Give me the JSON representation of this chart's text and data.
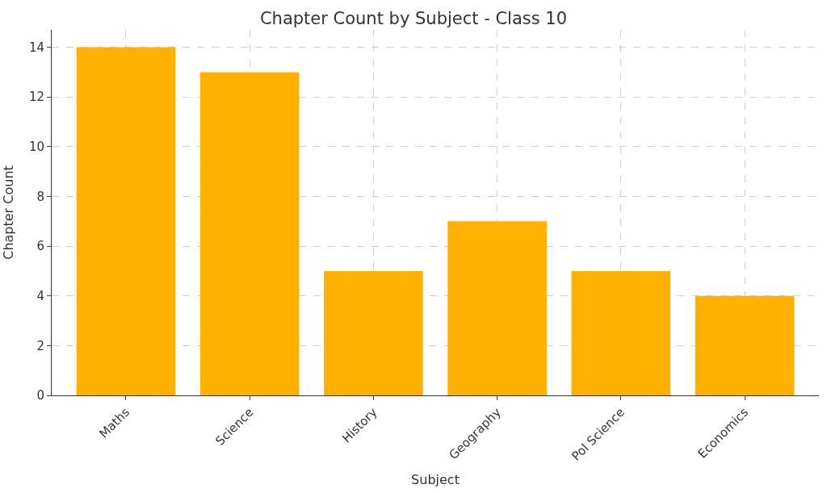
{
  "chart_data": {
    "type": "bar",
    "title": "Chapter Count by Subject - Class 10",
    "xlabel": "Subject",
    "ylabel": "Chapter Count",
    "categories": [
      "Maths",
      "Science",
      "History",
      "Geography",
      "Pol Science",
      "Economics"
    ],
    "values": [
      14,
      13,
      5,
      7,
      5,
      4
    ],
    "color": "#ffb000",
    "ylim": [
      0,
      14.7
    ],
    "yticks": [
      0,
      2,
      4,
      6,
      8,
      10,
      12,
      14
    ],
    "grid": true
  }
}
